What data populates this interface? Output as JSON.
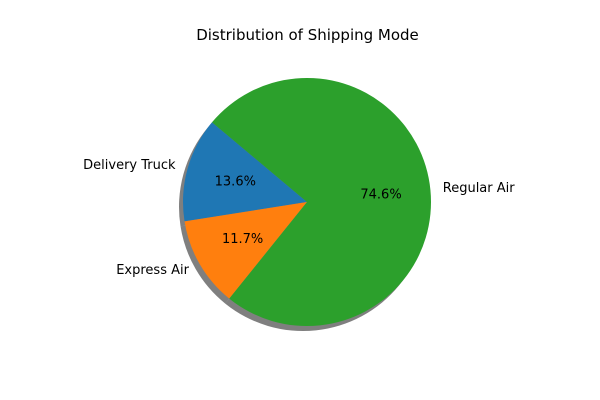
{
  "chart_data": {
    "type": "pie",
    "title": "Distribution of Shipping Mode",
    "categories": [
      "Delivery Truck",
      "Express Air",
      "Regular Air"
    ],
    "values": [
      13.6,
      11.7,
      74.6
    ],
    "percent_labels": [
      "13.6%",
      "11.7%",
      "74.6%"
    ],
    "colors": [
      "#1f77b4",
      "#ff7f0e",
      "#2ca02c"
    ],
    "shadow": true,
    "start_angle_deg": 140,
    "direction": "counterclockwise",
    "legend": "none"
  }
}
